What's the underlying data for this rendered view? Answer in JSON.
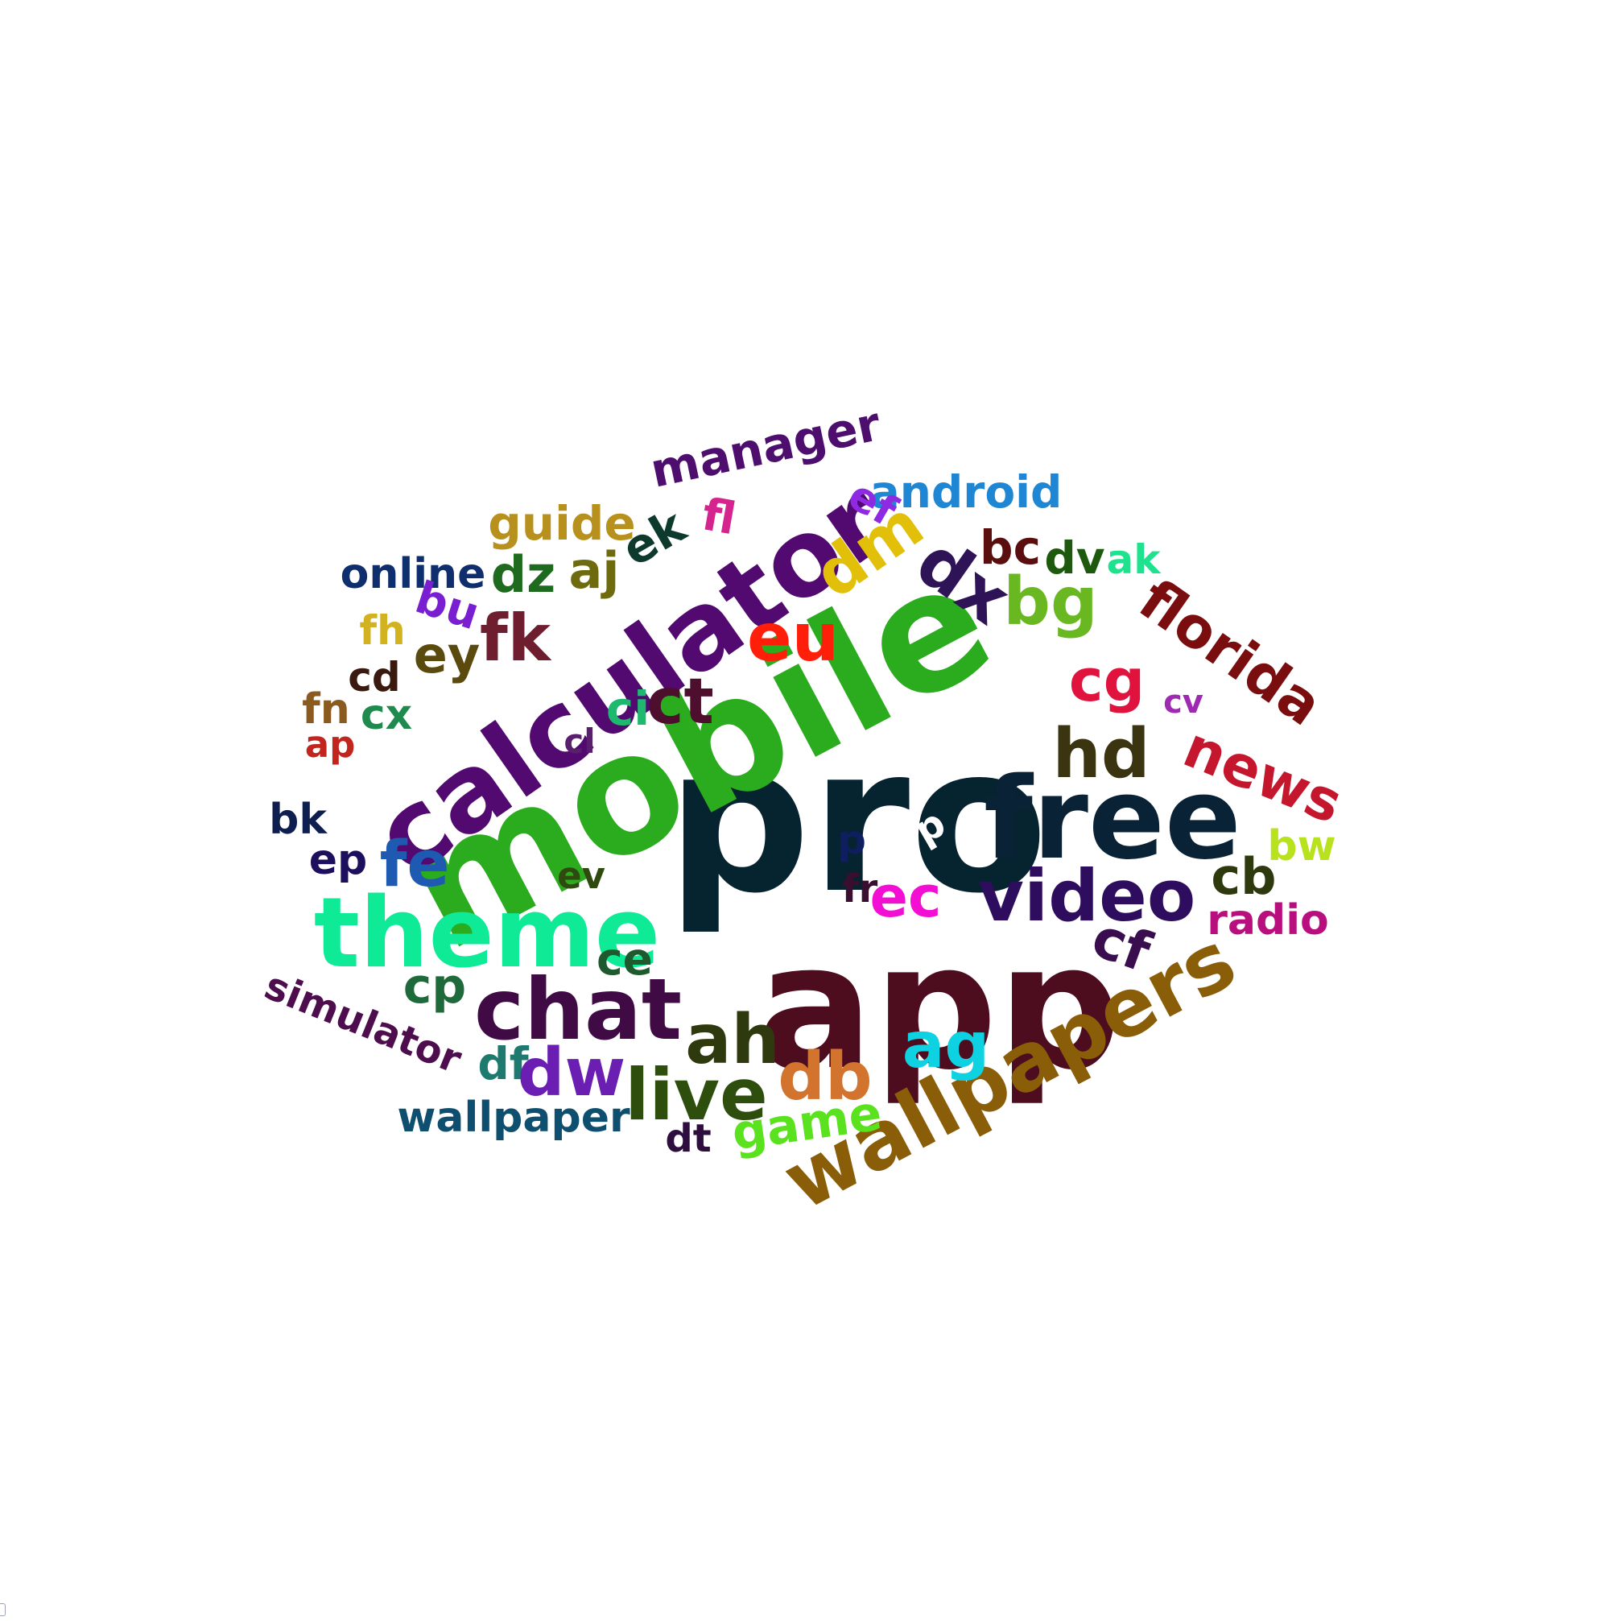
{
  "word_cloud": {
    "background": "#ffffff",
    "words": [
      {
        "text": "pro",
        "color": "#062330"
      },
      {
        "text": "mobile",
        "color": "#2aac1e"
      },
      {
        "text": "app",
        "color": "#4e0d1e"
      },
      {
        "text": "calculator",
        "color": "#520a70"
      },
      {
        "text": "free",
        "color": "#0a2236"
      },
      {
        "text": "wallpapers",
        "color": "#8a5e08"
      },
      {
        "text": "theme",
        "color": "#0eea96"
      },
      {
        "text": "chat",
        "color": "#400a45"
      },
      {
        "text": "video",
        "color": "#2e0c5e"
      },
      {
        "text": "eu",
        "color": "#ff1e0a"
      },
      {
        "text": "florida",
        "color": "#7a0e0e"
      },
      {
        "text": "news",
        "color": "#c4172e"
      },
      {
        "text": "dm",
        "color": "#e2c00a"
      },
      {
        "text": "dx",
        "color": "#2e1456"
      },
      {
        "text": "bg",
        "color": "#6ab821"
      },
      {
        "text": "cg",
        "color": "#e0133e"
      },
      {
        "text": "hd",
        "color": "#3a3410"
      },
      {
        "text": "manager",
        "color": "#4e0e6e"
      },
      {
        "text": "android",
        "color": "#1e86d2"
      },
      {
        "text": "guide",
        "color": "#b8901e"
      },
      {
        "text": "online",
        "color": "#0e2e6e"
      },
      {
        "text": "dz",
        "color": "#1e6a1e"
      },
      {
        "text": "aj",
        "color": "#6e6a0e"
      },
      {
        "text": "ek",
        "color": "#0e3a2e"
      },
      {
        "text": "fl",
        "color": "#d6248e"
      },
      {
        "text": "ef",
        "color": "#8e2ae2"
      },
      {
        "text": "bc",
        "color": "#5a0e0e"
      },
      {
        "text": "dv",
        "color": "#1e5a0e"
      },
      {
        "text": "ak",
        "color": "#1ee28e"
      },
      {
        "text": "bu",
        "color": "#7a1ed2"
      },
      {
        "text": "fk",
        "color": "#6e1e2e"
      },
      {
        "text": "fh",
        "color": "#d2b21e"
      },
      {
        "text": "ey",
        "color": "#5a4a0e"
      },
      {
        "text": "cd",
        "color": "#3a1a0e"
      },
      {
        "text": "fn",
        "color": "#8a5a1e"
      },
      {
        "text": "cx",
        "color": "#1e8a4e"
      },
      {
        "text": "ap",
        "color": "#c2241e"
      },
      {
        "text": "ci",
        "color": "#1eb86e"
      },
      {
        "text": "ct",
        "color": "#4e0e2e"
      },
      {
        "text": "cl",
        "color": "#5a1e6e"
      },
      {
        "text": "cv",
        "color": "#9e2ab2"
      },
      {
        "text": "bk",
        "color": "#0e1e4e"
      },
      {
        "text": "ep",
        "color": "#1e0e5e"
      },
      {
        "text": "fe",
        "color": "#1e5ab2"
      },
      {
        "text": "ev",
        "color": "#2e4a0e"
      },
      {
        "text": "p",
        "color": "#0e1e5e"
      },
      {
        "text": "d",
        "color": "#ffffff"
      },
      {
        "text": "fr",
        "color": "#3a0e2e"
      },
      {
        "text": "ec",
        "color": "#f20ed2"
      },
      {
        "text": "cb",
        "color": "#2e3a0e"
      },
      {
        "text": "bw",
        "color": "#b8e21e"
      },
      {
        "text": "radio",
        "color": "#b80e7e"
      },
      {
        "text": "cf",
        "color": "#3a0e4e"
      },
      {
        "text": "ce",
        "color": "#1e5a2e"
      },
      {
        "text": "cp",
        "color": "#1e6a3a"
      },
      {
        "text": "simulator",
        "color": "#4e0e4e"
      },
      {
        "text": "ah",
        "color": "#2e3a0e"
      },
      {
        "text": "ag",
        "color": "#0ed2e2"
      },
      {
        "text": "db",
        "color": "#d2742e"
      },
      {
        "text": "live",
        "color": "#2e4e0e"
      },
      {
        "text": "df",
        "color": "#1e7a6e"
      },
      {
        "text": "dw",
        "color": "#6a1eb2"
      },
      {
        "text": "wallpaper",
        "color": "#0e4e6e"
      },
      {
        "text": "dt",
        "color": "#2e0e3e"
      },
      {
        "text": "game",
        "color": "#5ae21e"
      }
    ]
  }
}
